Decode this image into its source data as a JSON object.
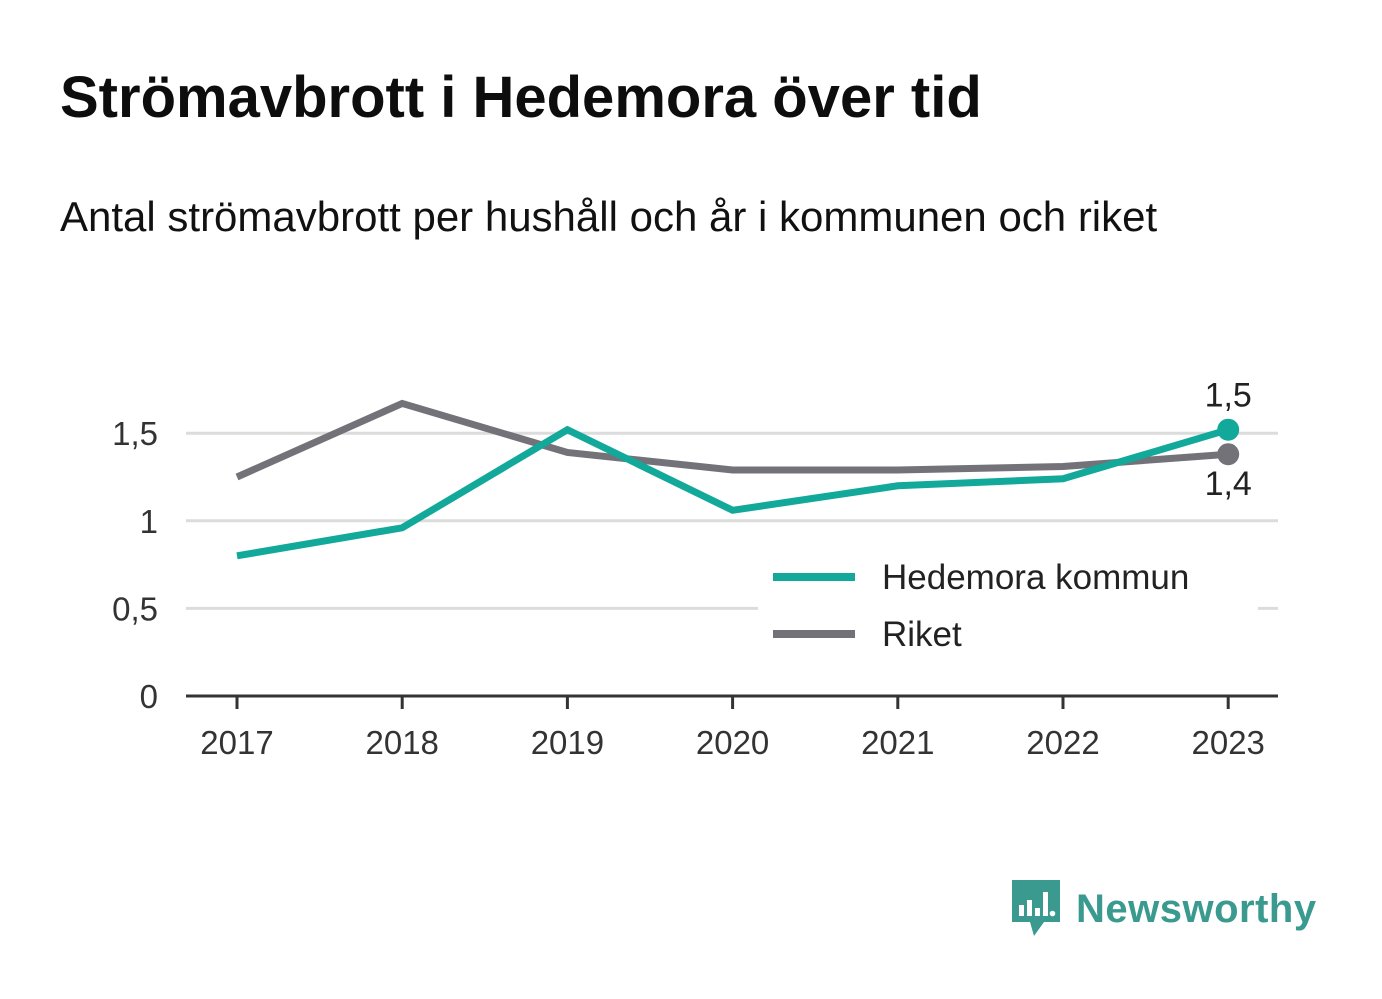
{
  "header": {
    "title": "Strömavbrott i Hedemora över tid",
    "subtitle": "Antal strömavbrott per hushåll och år i kommunen och riket"
  },
  "brand": {
    "name": "Newsworthy",
    "color": "#3a9a8f",
    "icon": "newsworthy-logo-icon"
  },
  "colors": {
    "hedemora": "#12a99b",
    "riket": "#737279",
    "grid": "#dcdcdc",
    "axis": "#333333"
  },
  "chart_data": {
    "type": "line",
    "x": [
      "2017",
      "2018",
      "2019",
      "2020",
      "2021",
      "2022",
      "2023"
    ],
    "y_ticks": [
      {
        "value": 0,
        "label": "0"
      },
      {
        "value": 0.5,
        "label": "0,5"
      },
      {
        "value": 1,
        "label": "1"
      },
      {
        "value": 1.5,
        "label": "1,5"
      }
    ],
    "ylim": [
      0,
      1.72
    ],
    "grid": true,
    "legend_placement": "bottom-right",
    "series": [
      {
        "key": "hedemora",
        "name": "Hedemora kommun",
        "values": [
          0.8,
          0.96,
          1.52,
          1.06,
          1.2,
          1.24,
          1.52
        ],
        "end_label": "1,5"
      },
      {
        "key": "riket",
        "name": "Riket",
        "values": [
          1.25,
          1.67,
          1.39,
          1.29,
          1.29,
          1.31,
          1.38
        ],
        "end_label": "1,4"
      }
    ]
  }
}
